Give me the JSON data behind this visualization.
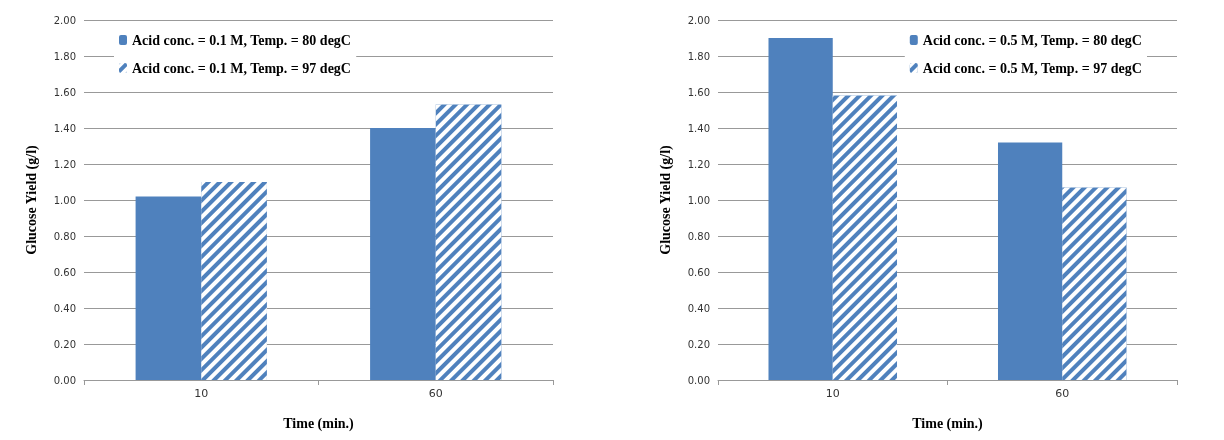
{
  "chart_data": [
    {
      "type": "bar",
      "xlabel": "Time (min.)",
      "ylabel": "Glucose Yield (g/l)",
      "categories": [
        "10",
        "60"
      ],
      "series": [
        {
          "name": "Acid conc. = 0.1 M, Temp. = 80 degC",
          "color": "#4f81bd",
          "values": [
            1.02,
            1.4
          ]
        },
        {
          "name": "Acid conc. = 0.1 M, Temp. = 97 degC",
          "color": "#4f81bd",
          "values": [
            1.1,
            1.53
          ]
        }
      ],
      "ylim": [
        0,
        2
      ],
      "yticks": [
        {
          "value": 0,
          "label": "0.00"
        },
        {
          "value": 0.2,
          "label": "0.20"
        },
        {
          "value": 0.4,
          "label": "0.40"
        },
        {
          "value": 0.6,
          "label": "0.60"
        },
        {
          "value": 0.8,
          "label": "0.80"
        },
        {
          "value": 1,
          "label": "1.00"
        },
        {
          "value": 1.2,
          "label": "1.20"
        },
        {
          "value": 1.4,
          "label": "1.40"
        },
        {
          "value": 1.6,
          "label": "1.60"
        },
        {
          "value": 1.8,
          "label": "1.80"
        },
        {
          "value": 2,
          "label": "2.00"
        }
      ],
      "grid": "y",
      "legend": "top left"
    },
    {
      "type": "bar",
      "xlabel": "Time (min.)",
      "ylabel": "Glucose Yield (g/l)",
      "categories": [
        "10",
        "60"
      ],
      "series": [
        {
          "name": "Acid conc. = 0.5 M, Temp. = 80 degC",
          "color": "#4f81bd",
          "values": [
            1.9,
            1.32
          ]
        },
        {
          "name": "Acid conc. = 0.5 M, Temp. = 97 degC",
          "color": "#4f81bd",
          "values": [
            1.58,
            1.07
          ]
        }
      ],
      "ylim": [
        0,
        2
      ],
      "yticks": [
        {
          "value": 0,
          "label": "0.00"
        },
        {
          "value": 0.2,
          "label": "0.20"
        },
        {
          "value": 0.4,
          "label": "0.40"
        },
        {
          "value": 0.6,
          "label": "0.60"
        },
        {
          "value": 0.8,
          "label": "0.80"
        },
        {
          "value": 1,
          "label": "1.00"
        },
        {
          "value": 1.2,
          "label": "1.20"
        },
        {
          "value": 1.4,
          "label": "1.40"
        },
        {
          "value": 1.6,
          "label": "1.60"
        },
        {
          "value": 1.8,
          "label": "1.80"
        },
        {
          "value": 2,
          "label": "2.00"
        }
      ],
      "grid": "y",
      "legend": "top right"
    }
  ]
}
